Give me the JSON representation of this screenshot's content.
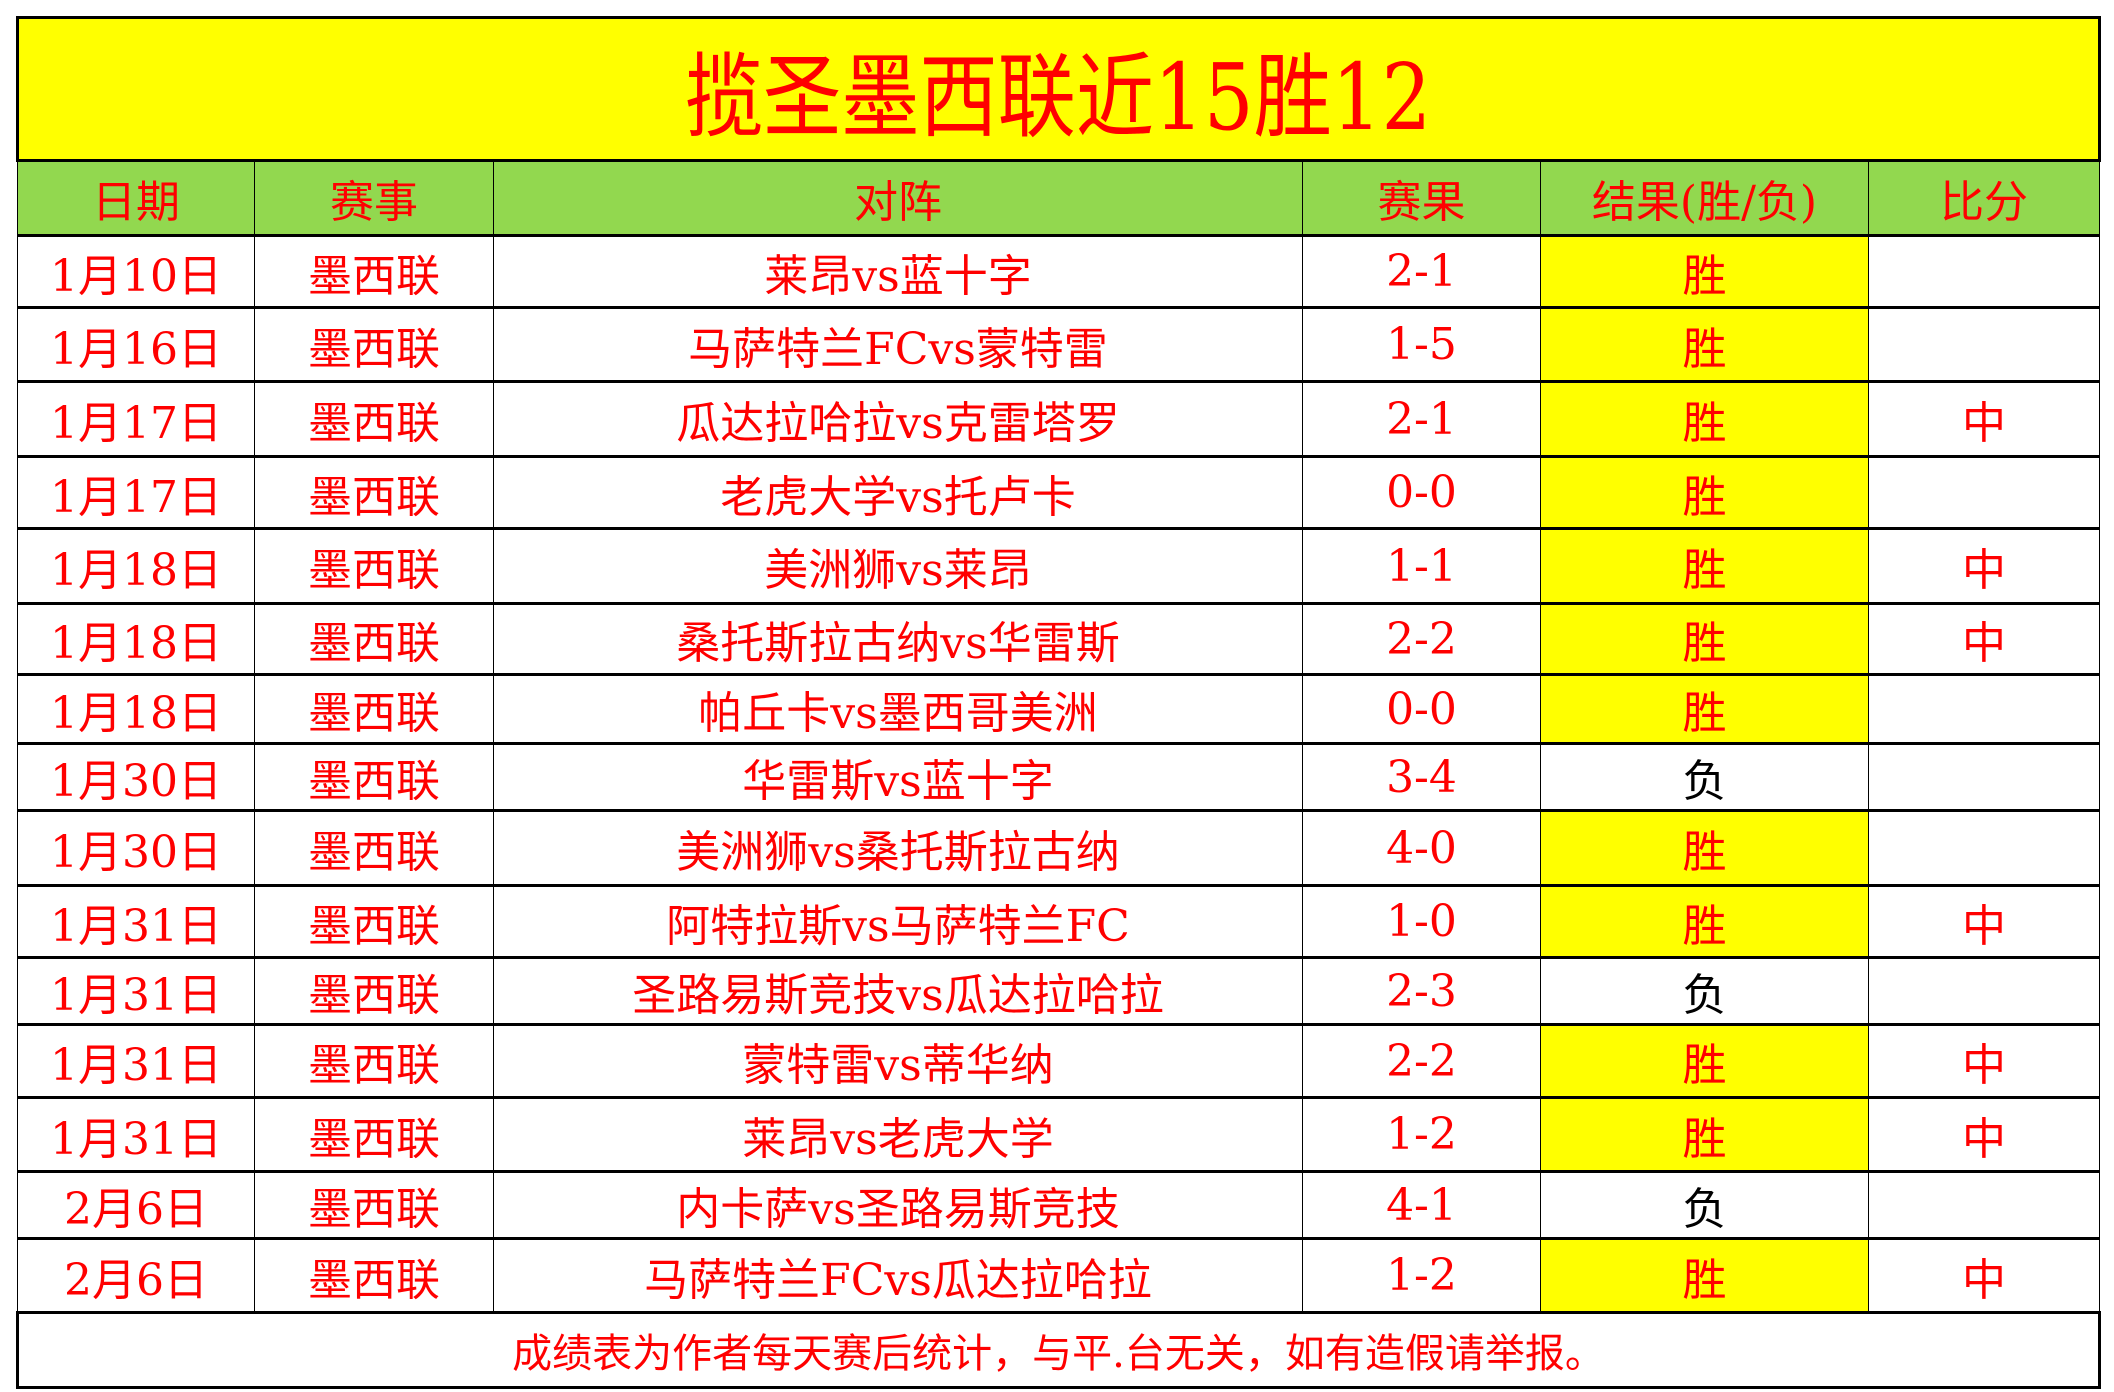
{
  "title": "揽圣墨西联近15胜12",
  "headers": [
    "日期",
    "赛事",
    "对阵",
    "赛果",
    "结果(胜/负)",
    "比分"
  ],
  "rows": [
    {
      "date": "1月10日",
      "league": "墨西联",
      "match": "莱昂vs蓝十字",
      "score": "2-1",
      "result": "胜",
      "mark": ""
    },
    {
      "date": "1月16日",
      "league": "墨西联",
      "match": "马萨特兰FCvs蒙特雷",
      "score": "1-5",
      "result": "胜",
      "mark": ""
    },
    {
      "date": "1月17日",
      "league": "墨西联",
      "match": "瓜达拉哈拉vs克雷塔罗",
      "score": "2-1",
      "result": "胜",
      "mark": "中"
    },
    {
      "date": "1月17日",
      "league": "墨西联",
      "match": "老虎大学vs托卢卡",
      "score": "0-0",
      "result": "胜",
      "mark": ""
    },
    {
      "date": "1月18日",
      "league": "墨西联",
      "match": "美洲狮vs莱昂",
      "score": "1-1",
      "result": "胜",
      "mark": "中"
    },
    {
      "date": "1月18日",
      "league": "墨西联",
      "match": "桑托斯拉古纳vs华雷斯",
      "score": "2-2",
      "result": "胜",
      "mark": "中"
    },
    {
      "date": "1月18日",
      "league": "墨西联",
      "match": "帕丘卡vs墨西哥美洲",
      "score": "0-0",
      "result": "胜",
      "mark": ""
    },
    {
      "date": "1月30日",
      "league": "墨西联",
      "match": "华雷斯vs蓝十字",
      "score": "3-4",
      "result": "负",
      "mark": ""
    },
    {
      "date": "1月30日",
      "league": "墨西联",
      "match": "美洲狮vs桑托斯拉古纳",
      "score": "4-0",
      "result": "胜",
      "mark": ""
    },
    {
      "date": "1月31日",
      "league": "墨西联",
      "match": "阿特拉斯vs马萨特兰FC",
      "score": "1-0",
      "result": "胜",
      "mark": "中"
    },
    {
      "date": "1月31日",
      "league": "墨西联",
      "match": "圣路易斯竞技vs瓜达拉哈拉",
      "score": "2-3",
      "result": "负",
      "mark": ""
    },
    {
      "date": "1月31日",
      "league": "墨西联",
      "match": "蒙特雷vs蒂华纳",
      "score": "2-2",
      "result": "胜",
      "mark": "中"
    },
    {
      "date": "1月31日",
      "league": "墨西联",
      "match": "莱昂vs老虎大学",
      "score": "1-2",
      "result": "胜",
      "mark": "中"
    },
    {
      "date": "2月6日",
      "league": "墨西联",
      "match": "内卡萨vs圣路易斯竞技",
      "score": "4-1",
      "result": "负",
      "mark": ""
    },
    {
      "date": "2月6日",
      "league": "墨西联",
      "match": "马萨特兰FCvs瓜达拉哈拉",
      "score": "1-2",
      "result": "胜",
      "mark": "中"
    }
  ],
  "footer": "成绩表为作者每天赛后统计，与平.台无关，如有造假请举报。",
  "colors": {
    "title_bg": "#ffff00",
    "header_bg": "#92d84f",
    "text": "#ff0000",
    "win_bg": "#ffff00"
  }
}
